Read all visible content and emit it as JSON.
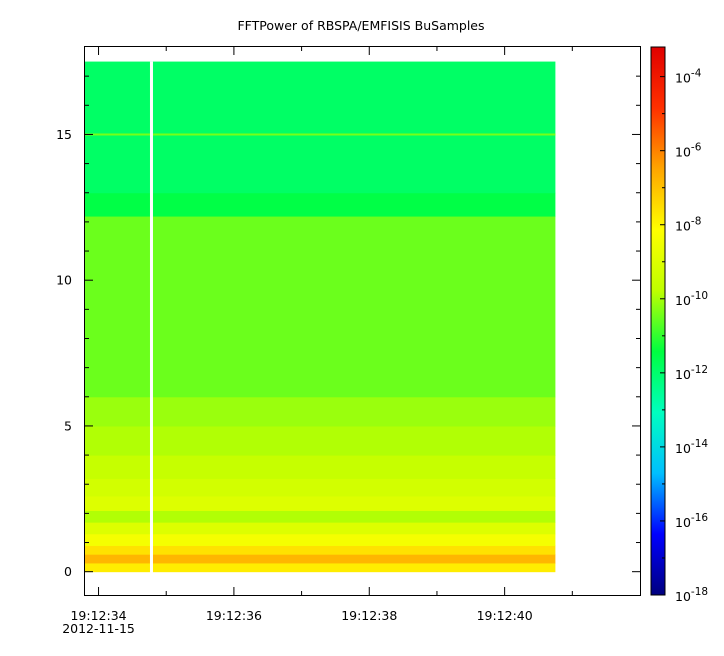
{
  "chart_data": {
    "type": "heatmap",
    "title": "FFTPower of RBSPA/EMFISIS  BuSamples",
    "xlabel": "",
    "ylabel": "",
    "x_ticks": [
      {
        "value": 34,
        "label": "19:12:34",
        "sublabel": "2012-11-15"
      },
      {
        "value": 36,
        "label": "19:12:36"
      },
      {
        "value": 38,
        "label": "19:12:38"
      },
      {
        "value": 40,
        "label": "19:12:40"
      }
    ],
    "x_minor_ticks": [
      35,
      37,
      39,
      41
    ],
    "xlim": [
      33.8,
      42.0
    ],
    "y_ticks": [
      0,
      5,
      10,
      15
    ],
    "ylim": [
      -0.8,
      18.0
    ],
    "data_extent": {
      "x": [
        33.8,
        40.75
      ],
      "y": [
        0,
        17.5
      ]
    },
    "gap": {
      "x": [
        34.76,
        34.8
      ]
    },
    "horizontal_line": {
      "y": 15.0
    },
    "bands": [
      {
        "y0": 0.0,
        "y1": 0.3,
        "log_power": -7.8
      },
      {
        "y0": 0.3,
        "y1": 0.6,
        "log_power": -6.8
      },
      {
        "y0": 0.6,
        "y1": 0.9,
        "log_power": -7.6
      },
      {
        "y0": 0.9,
        "y1": 1.3,
        "log_power": -8.4
      },
      {
        "y0": 1.3,
        "y1": 1.7,
        "log_power": -9.0
      },
      {
        "y0": 1.7,
        "y1": 2.1,
        "log_power": -9.9
      },
      {
        "y0": 2.1,
        "y1": 2.6,
        "log_power": -9.0
      },
      {
        "y0": 2.6,
        "y1": 3.2,
        "log_power": -9.3
      },
      {
        "y0": 3.2,
        "y1": 4.0,
        "log_power": -9.6
      },
      {
        "y0": 4.0,
        "y1": 5.0,
        "log_power": -9.9
      },
      {
        "y0": 5.0,
        "y1": 6.0,
        "log_power": -10.1
      },
      {
        "y0": 6.0,
        "y1": 12.2,
        "log_power": -10.5
      },
      {
        "y0": 12.2,
        "y1": 13.0,
        "log_power": -11.5
      },
      {
        "y0": 13.0,
        "y1": 17.5,
        "log_power": -11.9
      }
    ],
    "colorbar": {
      "scale": "log",
      "range": [
        -18,
        -3.2
      ],
      "ticks": [
        {
          "exp": -4,
          "base": "10",
          "sup": "-4"
        },
        {
          "exp": -6,
          "base": "10",
          "sup": "-6"
        },
        {
          "exp": -8,
          "base": "10",
          "sup": "-8"
        },
        {
          "exp": -10,
          "base": "10",
          "sup": "-10"
        },
        {
          "exp": -12,
          "base": "10",
          "sup": "-12"
        },
        {
          "exp": -14,
          "base": "10",
          "sup": "-14"
        },
        {
          "exp": -16,
          "base": "10",
          "sup": "-16"
        },
        {
          "exp": -18,
          "base": "10",
          "sup": "-18"
        }
      ],
      "colormap": [
        "#00007f",
        "#0000ff",
        "#00bfff",
        "#00ffbf",
        "#00ff40",
        "#bfff00",
        "#ffff00",
        "#ffa500",
        "#ff3000",
        "#e00000"
      ]
    },
    "grid": false
  }
}
